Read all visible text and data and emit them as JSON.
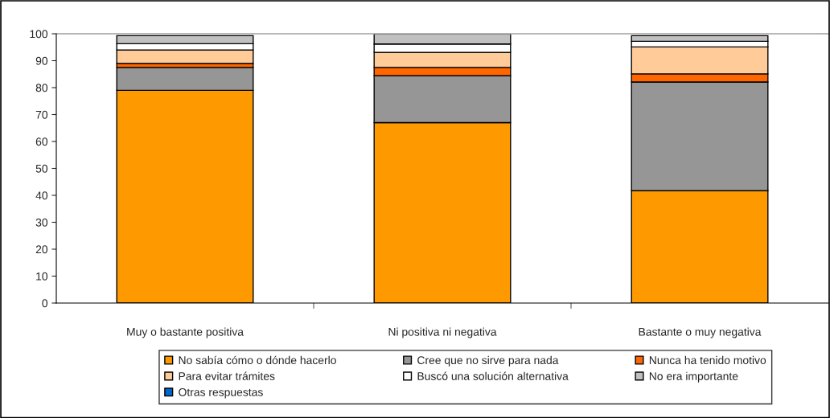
{
  "chart_data": {
    "type": "bar",
    "stacked": true,
    "categories": [
      "Muy o bastante positiva",
      "Ni positiva ni negativa",
      "Bastante o muy negativa"
    ],
    "series": [
      {
        "name": "No sabía cómo o dónde hacerlo",
        "color": "#ff9900",
        "values": [
          79,
          67,
          41.7
        ]
      },
      {
        "name": "Cree que no sirve para nada",
        "color": "#969696",
        "values": [
          8.5,
          17.4,
          40.4
        ]
      },
      {
        "name": "Nunca ha tenido motivo",
        "color": "#ff6600",
        "values": [
          1.5,
          3.1,
          3
        ]
      },
      {
        "name": "Para evitar trámites",
        "color": "#ffcc99",
        "values": [
          5,
          5.6,
          10
        ]
      },
      {
        "name": "Buscó una solución alternativa",
        "color": "#ffffff",
        "values": [
          2.3,
          3.1,
          2.1
        ]
      },
      {
        "name": "No era importante",
        "color": "#c0c0c0",
        "values": [
          3,
          3.8,
          2.1
        ]
      },
      {
        "name": "Otras respuestas",
        "color": "#0066cc",
        "values": [
          null,
          null,
          null
        ]
      }
    ],
    "ylim": [
      0,
      100
    ],
    "yticks": [
      0,
      10,
      20,
      30,
      40,
      50,
      60,
      70,
      80,
      90,
      100
    ],
    "grid": false,
    "legend": "bottom"
  }
}
